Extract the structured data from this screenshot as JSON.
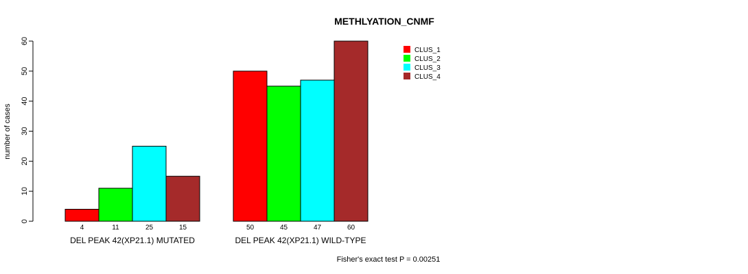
{
  "chart_data": {
    "type": "bar",
    "title": "METHLYATION_CNMF",
    "xlabel": "",
    "ylabel": "number of cases",
    "ylim": [
      0,
      60
    ],
    "yticks": [
      0,
      10,
      20,
      30,
      40,
      50,
      60
    ],
    "categories": [
      "DEL PEAK 42(XP21.1) MUTATED",
      "DEL PEAK 42(XP21.1) WILD-TYPE"
    ],
    "series": [
      {
        "name": "CLUS_1",
        "color": "#ff0000",
        "values": [
          4,
          50
        ]
      },
      {
        "name": "CLUS_2",
        "color": "#00ff00",
        "values": [
          11,
          45
        ]
      },
      {
        "name": "CLUS_3",
        "color": "#00ffff",
        "values": [
          25,
          47
        ]
      },
      {
        "name": "CLUS_4",
        "color": "#a52a2a",
        "values": [
          15,
          60
        ]
      }
    ],
    "legend_position": "top-right",
    "grid": false,
    "annotation": "Fisher's exact test P = 0.00251"
  }
}
